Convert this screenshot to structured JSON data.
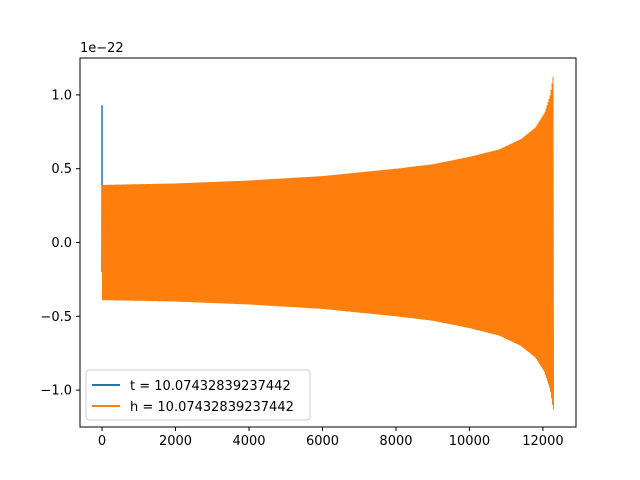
{
  "chart_data": {
    "type": "line",
    "title": "",
    "xlabel": "",
    "ylabel": "",
    "y_offset_label": "1e−22",
    "xlim": [
      -600,
      12900
    ],
    "ylim": [
      -1.25,
      1.25
    ],
    "xticks": [
      {
        "value": 0,
        "label": "0"
      },
      {
        "value": 2000,
        "label": "2000"
      },
      {
        "value": 4000,
        "label": "4000"
      },
      {
        "value": 6000,
        "label": "6000"
      },
      {
        "value": 8000,
        "label": "8000"
      },
      {
        "value": 10000,
        "label": "10000"
      },
      {
        "value": 12000,
        "label": "12000"
      }
    ],
    "yticks": [
      {
        "value": -1.0,
        "label": "−1.0"
      },
      {
        "value": -0.5,
        "label": "−0.5"
      },
      {
        "value": 0.0,
        "label": "0.0"
      },
      {
        "value": 0.5,
        "label": "0.5"
      },
      {
        "value": 1.0,
        "label": "1.0"
      }
    ],
    "grid": false,
    "legend_position": "lower-left",
    "series": [
      {
        "name": "t = 10.07432839237442",
        "color": "#1f77b4",
        "description_points": {
          "x": [
            0,
            0,
            0
          ],
          "y": [
            -0.2,
            0.93,
            -0.2
          ]
        }
      },
      {
        "name": "h = 10.07432839237442",
        "color": "#ff7f0e",
        "envelope": {
          "x": [
            0,
            2000,
            4000,
            6000,
            8000,
            9000,
            10000,
            10800,
            11400,
            11800,
            12050,
            12200,
            12280,
            12300
          ],
          "upper": [
            0.39,
            0.4,
            0.42,
            0.45,
            0.5,
            0.53,
            0.58,
            0.63,
            0.7,
            0.78,
            0.88,
            1.0,
            1.13,
            1.13
          ],
          "lower": [
            -0.39,
            -0.4,
            -0.42,
            -0.45,
            -0.5,
            -0.53,
            -0.58,
            -0.63,
            -0.7,
            -0.78,
            -0.88,
            -1.0,
            -1.13,
            -1.13
          ]
        }
      }
    ]
  }
}
